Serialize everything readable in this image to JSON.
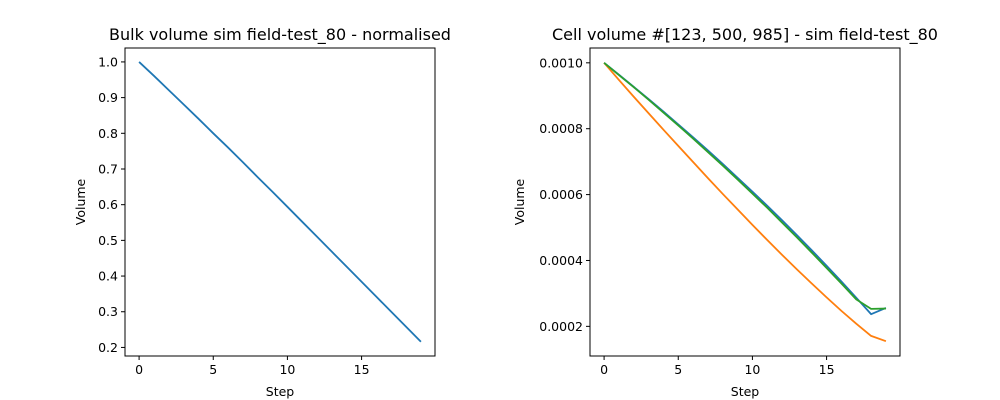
{
  "chart_data": [
    {
      "type": "line",
      "title": "Bulk volume sim field-test_80 - normalised",
      "xlabel": "Step",
      "ylabel": "Volume",
      "xlim": [
        -0.95,
        19.95
      ],
      "ylim": [
        0.176,
        1.039
      ],
      "xticks": [
        "0",
        "5",
        "10",
        "15"
      ],
      "yticks": [
        "0.2",
        "0.3",
        "0.4",
        "0.5",
        "0.6",
        "0.7",
        "0.8",
        "0.9",
        "1.0"
      ],
      "grid": false,
      "series": [
        {
          "color": "#1f77b4",
          "x": [
            0,
            1,
            2,
            3,
            4,
            5,
            6,
            7,
            8,
            9,
            10,
            11,
            12,
            13,
            14,
            15,
            16,
            17,
            18,
            19
          ],
          "y": [
            1.0,
            0.961,
            0.921,
            0.881,
            0.841,
            0.8,
            0.76,
            0.719,
            0.677,
            0.636,
            0.594,
            0.552,
            0.51,
            0.468,
            0.426,
            0.384,
            0.342,
            0.3,
            0.258,
            0.216
          ]
        }
      ]
    },
    {
      "type": "line",
      "title": "Cell volume #[123, 500, 985] - sim field-test_80",
      "xlabel": "Step",
      "ylabel": "Volume",
      "xlim": [
        -0.95,
        19.95
      ],
      "ylim": [
        0.00011,
        0.001045
      ],
      "xticks": [
        "0",
        "5",
        "10",
        "15"
      ],
      "yticks": [
        "0.0002",
        "0.0004",
        "0.0006",
        "0.0008",
        "0.0010"
      ],
      "grid": false,
      "series": [
        {
          "color": "#1f77b4",
          "x": [
            0,
            1,
            2,
            3,
            4,
            5,
            6,
            7,
            8,
            9,
            10,
            11,
            12,
            13,
            14,
            15,
            16,
            17,
            18,
            19
          ],
          "y": [
            0.001,
            0.000964,
            0.000927,
            0.00089,
            0.000852,
            0.000813,
            0.000774,
            0.000734,
            0.000693,
            0.000651,
            0.000609,
            0.000566,
            0.000522,
            0.000477,
            0.000431,
            0.000384,
            0.000336,
            0.000287,
            0.000237,
            0.000256
          ]
        },
        {
          "color": "#ff7f0e",
          "x": [
            0,
            1,
            2,
            3,
            4,
            5,
            6,
            7,
            8,
            9,
            10,
            11,
            12,
            13,
            14,
            15,
            16,
            17,
            18,
            19
          ],
          "y": [
            0.001,
            0.000948,
            0.000897,
            0.000847,
            0.000797,
            0.000748,
            0.000699,
            0.00065,
            0.000602,
            0.000555,
            0.000508,
            0.000462,
            0.000417,
            0.000373,
            0.00033,
            0.000288,
            0.000247,
            0.000208,
            0.000171,
            0.000155
          ]
        },
        {
          "color": "#2ca02c",
          "x": [
            0,
            1,
            2,
            3,
            4,
            5,
            6,
            7,
            8,
            9,
            10,
            11,
            12,
            13,
            14,
            15,
            16,
            17,
            18,
            19
          ],
          "y": [
            0.001,
            0.000963,
            0.000926,
            0.000888,
            0.000849,
            0.00081,
            0.00077,
            0.000729,
            0.000688,
            0.000646,
            0.000603,
            0.00056,
            0.000515,
            0.00047,
            0.000424,
            0.000377,
            0.00033,
            0.000282,
            0.000253,
            0.000254
          ]
        }
      ]
    }
  ]
}
